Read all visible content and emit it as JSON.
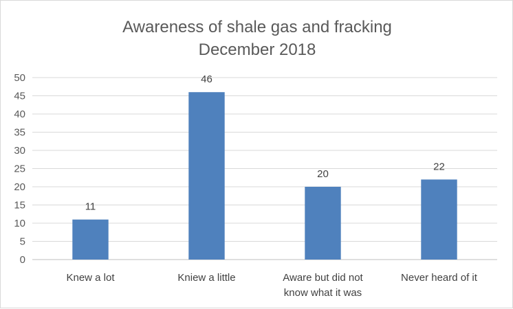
{
  "chart_data": {
    "type": "bar",
    "title": [
      "Awareness of shale gas and fracking",
      "December 2018"
    ],
    "categories": [
      [
        "Knew a lot"
      ],
      [
        "Kniew a little"
      ],
      [
        "Aware but did not",
        "know what it was"
      ],
      [
        "Never heard of it"
      ]
    ],
    "values": [
      11,
      46,
      20,
      22
    ],
    "ylim": [
      0,
      50
    ],
    "yticks": [
      0,
      5,
      10,
      15,
      20,
      25,
      30,
      35,
      40,
      45,
      50
    ],
    "grid": true,
    "legend": "none",
    "bar_color": "#4f81bd",
    "data_labels": true
  }
}
